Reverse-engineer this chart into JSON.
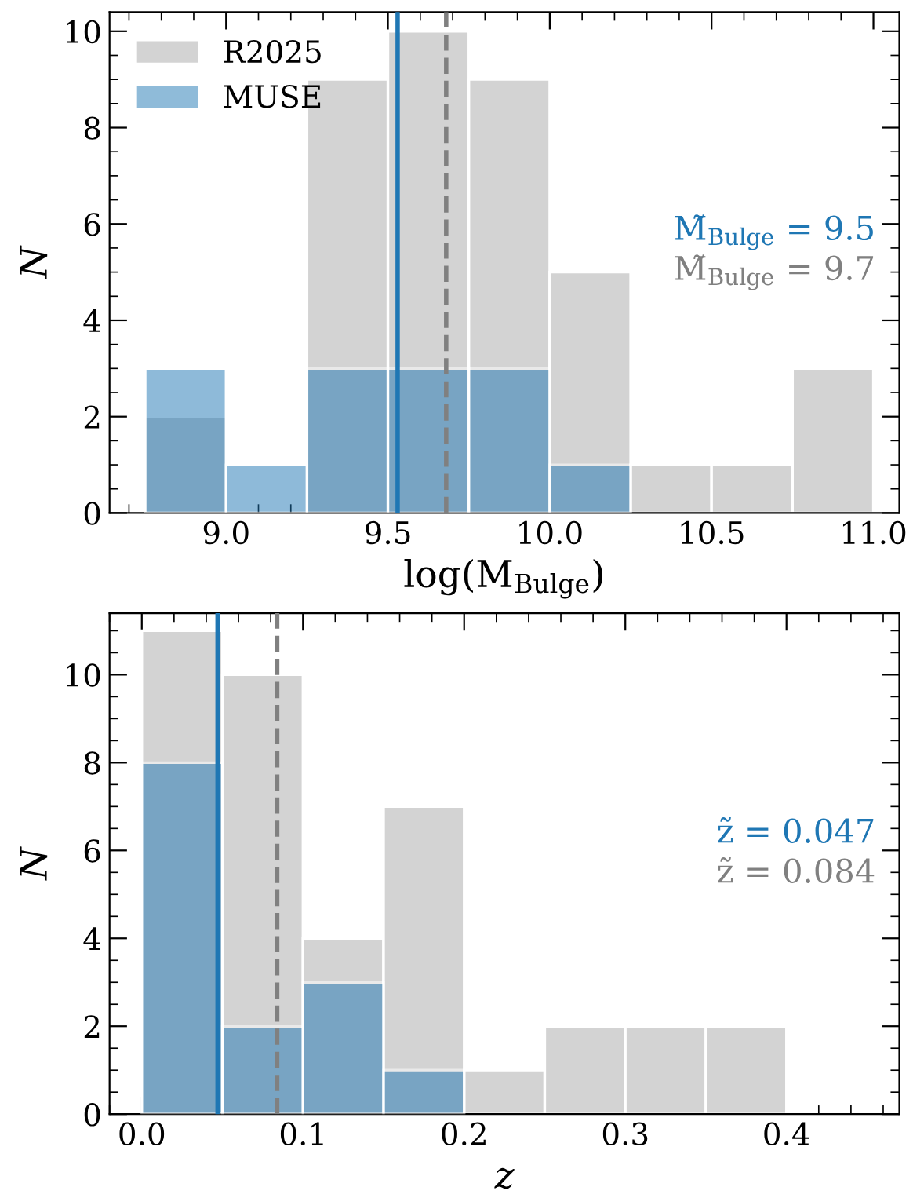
{
  "chart_data": [
    {
      "type": "histogram",
      "xlabel": "log(M$_{Bulge}$)",
      "ylabel": "N",
      "bins": [
        8.75,
        9.0,
        9.25,
        9.5,
        9.75,
        10.0,
        10.25,
        10.5,
        10.75,
        11.0
      ],
      "series": [
        {
          "name": "R2025",
          "color": "#d3d3d3",
          "values": [
            2,
            0,
            9,
            10,
            9,
            5,
            1,
            1,
            3
          ]
        },
        {
          "name": "MUSE",
          "color": "#1f77b4",
          "values": [
            3,
            1,
            3,
            3,
            3,
            1,
            0,
            0,
            0
          ]
        }
      ],
      "xlim": [
        8.64,
        11.08
      ],
      "ylim": [
        0,
        10.4
      ],
      "xticks": [
        {
          "value": 9.0,
          "label": "9.0"
        },
        {
          "value": 9.5,
          "label": "9.5"
        },
        {
          "value": 10.0,
          "label": "10.0"
        },
        {
          "value": 10.5,
          "label": "10.5"
        },
        {
          "value": 11.0,
          "label": "11.0"
        }
      ],
      "yticks": [
        0,
        2,
        4,
        6,
        8,
        10
      ],
      "ref_lines": [
        {
          "axis": "x",
          "value": 9.53,
          "color": "#1f77b4",
          "line_style": "solid"
        },
        {
          "axis": "x",
          "value": 9.68,
          "color": "#808080",
          "line_style": "dashed"
        }
      ],
      "annotations": [
        "M̃$_{Bulge}$ = 9.5",
        "M̃$_{Bulge}$ = 9.7"
      ],
      "legend": "top left",
      "grid": false
    },
    {
      "type": "histogram",
      "xlabel": "z",
      "ylabel": "N",
      "bins": [
        0.0,
        0.05,
        0.1,
        0.15,
        0.2,
        0.25,
        0.3,
        0.35,
        0.4
      ],
      "series": [
        {
          "color": "#d3d3d3",
          "values": [
            11,
            10,
            4,
            7,
            1,
            2,
            2,
            2
          ]
        },
        {
          "color": "#1f77b4",
          "values": [
            8,
            2,
            3,
            1,
            0,
            0,
            0,
            0
          ]
        }
      ],
      "xlim": [
        -0.02,
        0.47
      ],
      "ylim": [
        0,
        11.4
      ],
      "xticks": [
        {
          "value": 0.0,
          "label": "0.0"
        },
        {
          "value": 0.1,
          "label": "0.1"
        },
        {
          "value": 0.2,
          "label": "0.2"
        },
        {
          "value": 0.3,
          "label": "0.3"
        },
        {
          "value": 0.4,
          "label": "0.4"
        }
      ],
      "yticks": [
        0,
        2,
        4,
        6,
        8,
        10
      ],
      "ref_lines": [
        {
          "axis": "x",
          "value": 0.047,
          "color": "#1f77b4",
          "line_style": "solid"
        },
        {
          "axis": "x",
          "value": 0.084,
          "color": "#808080",
          "line_style": "dashed"
        }
      ],
      "annotations": [
        "z̃ = 0.047",
        "z̃ = 0.084"
      ],
      "legend": false,
      "grid": false
    }
  ]
}
